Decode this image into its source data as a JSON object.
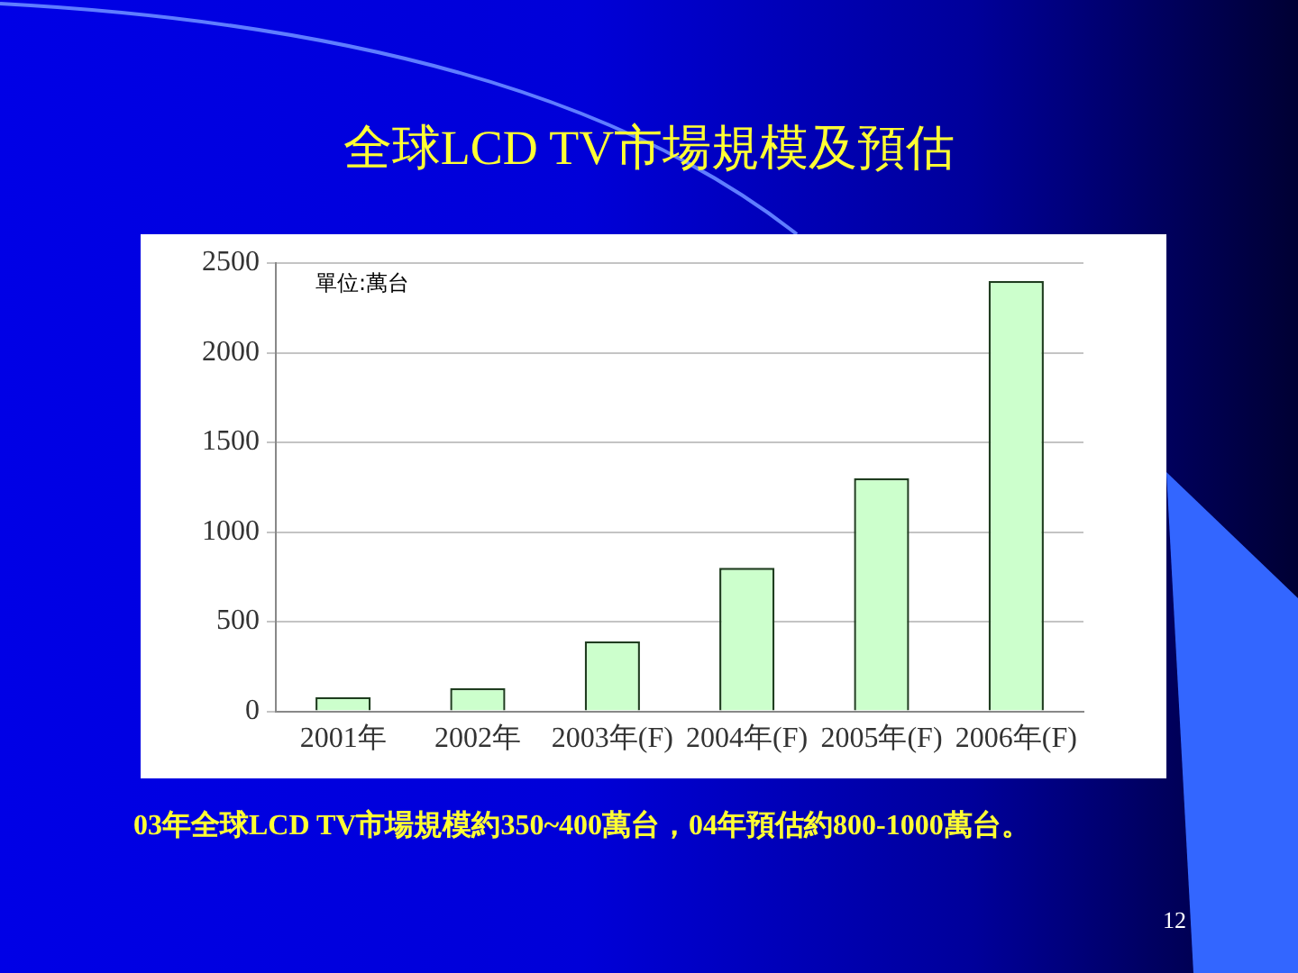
{
  "chart_data": {
    "type": "bar",
    "title": "全球LCD TV市場規模及預估",
    "ylabel": "單位:萬台",
    "categories": [
      "2001年",
      "2002年",
      "2003年(F)",
      "2004年(F)",
      "2005年(F)",
      "2006年(F)"
    ],
    "values": [
      80,
      130,
      390,
      800,
      1300,
      2400
    ],
    "color": "#ccffcc",
    "ylim": [
      0,
      2500
    ],
    "yticks": [
      0,
      500,
      1000,
      1500,
      2000,
      2500
    ],
    "grid": "y",
    "annotations": [
      "03年全球LCD TV市場規模約350~400萬台，04年預估約800-1000萬台。",
      "12"
    ]
  }
}
